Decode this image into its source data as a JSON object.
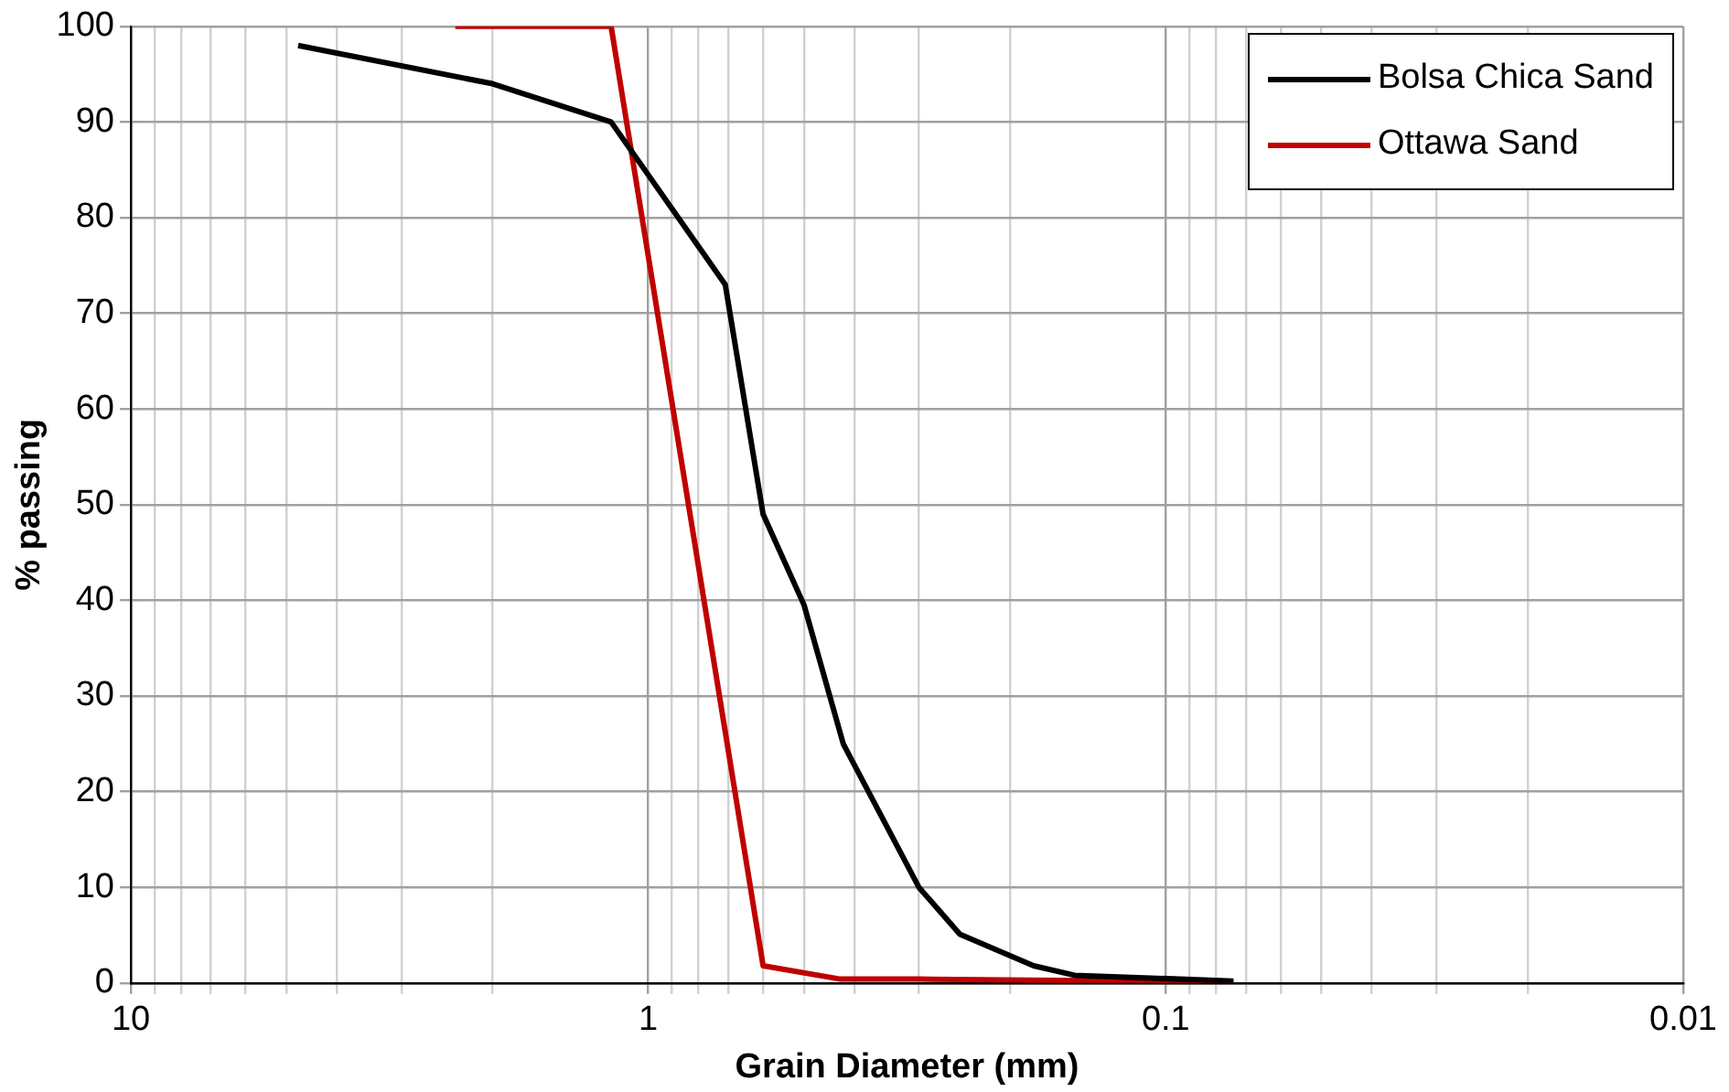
{
  "chart_data": {
    "type": "line",
    "xlabel": "Grain Diameter (mm)",
    "ylabel": "% passing",
    "log": "x",
    "xlim": [
      10,
      0.01
    ],
    "xticks": [
      10,
      {
        "value": 9,
        "label": null
      },
      {
        "value": 8,
        "label": null
      },
      {
        "value": 7,
        "label": null
      },
      {
        "value": 6,
        "label": null
      },
      {
        "value": 5,
        "label": null
      },
      {
        "value": 4,
        "label": null
      },
      {
        "value": 3,
        "label": null
      },
      {
        "value": 2,
        "label": null
      },
      1,
      {
        "value": 0.9,
        "label": null
      },
      {
        "value": 0.8,
        "label": null
      },
      {
        "value": 0.7,
        "label": null
      },
      {
        "value": 0.6,
        "label": null
      },
      {
        "value": 0.5,
        "label": null
      },
      {
        "value": 0.4,
        "label": null
      },
      {
        "value": 0.3,
        "label": null
      },
      {
        "value": 0.2,
        "label": null
      },
      0.1,
      {
        "value": 0.09,
        "label": null
      },
      {
        "value": 0.08,
        "label": null
      },
      {
        "value": 0.07,
        "label": null
      },
      {
        "value": 0.06,
        "label": null
      },
      {
        "value": 0.05,
        "label": null
      },
      {
        "value": 0.04,
        "label": null
      },
      {
        "value": 0.03,
        "label": null
      },
      {
        "value": 0.02,
        "label": null
      },
      0.01
    ],
    "ylim": [
      0,
      100
    ],
    "yticks": [
      0,
      10,
      20,
      30,
      40,
      50,
      60,
      70,
      80,
      90,
      100
    ],
    "grid": true,
    "legend": "top right",
    "marker": "none",
    "line_style": "solid",
    "series": [
      {
        "name": "Bolsa Chica Sand",
        "color": "#000000",
        "x": [
          4.75,
          2.0,
          1.18,
          0.71,
          0.6,
          0.5,
          0.42,
          0.3,
          0.25,
          0.18,
          0.15,
          0.074
        ],
        "values": [
          98,
          94,
          90,
          73,
          49,
          39.5,
          25,
          10,
          5.1,
          1.8,
          0.8,
          0.2
        ]
      },
      {
        "name": "Ottawa Sand",
        "color": "#c00000",
        "x": [
          2.36,
          1.18,
          0.6,
          0.425,
          0.3,
          0.074
        ],
        "values": [
          100,
          100,
          1.8,
          0.4,
          0.4,
          0.1
        ]
      }
    ]
  }
}
